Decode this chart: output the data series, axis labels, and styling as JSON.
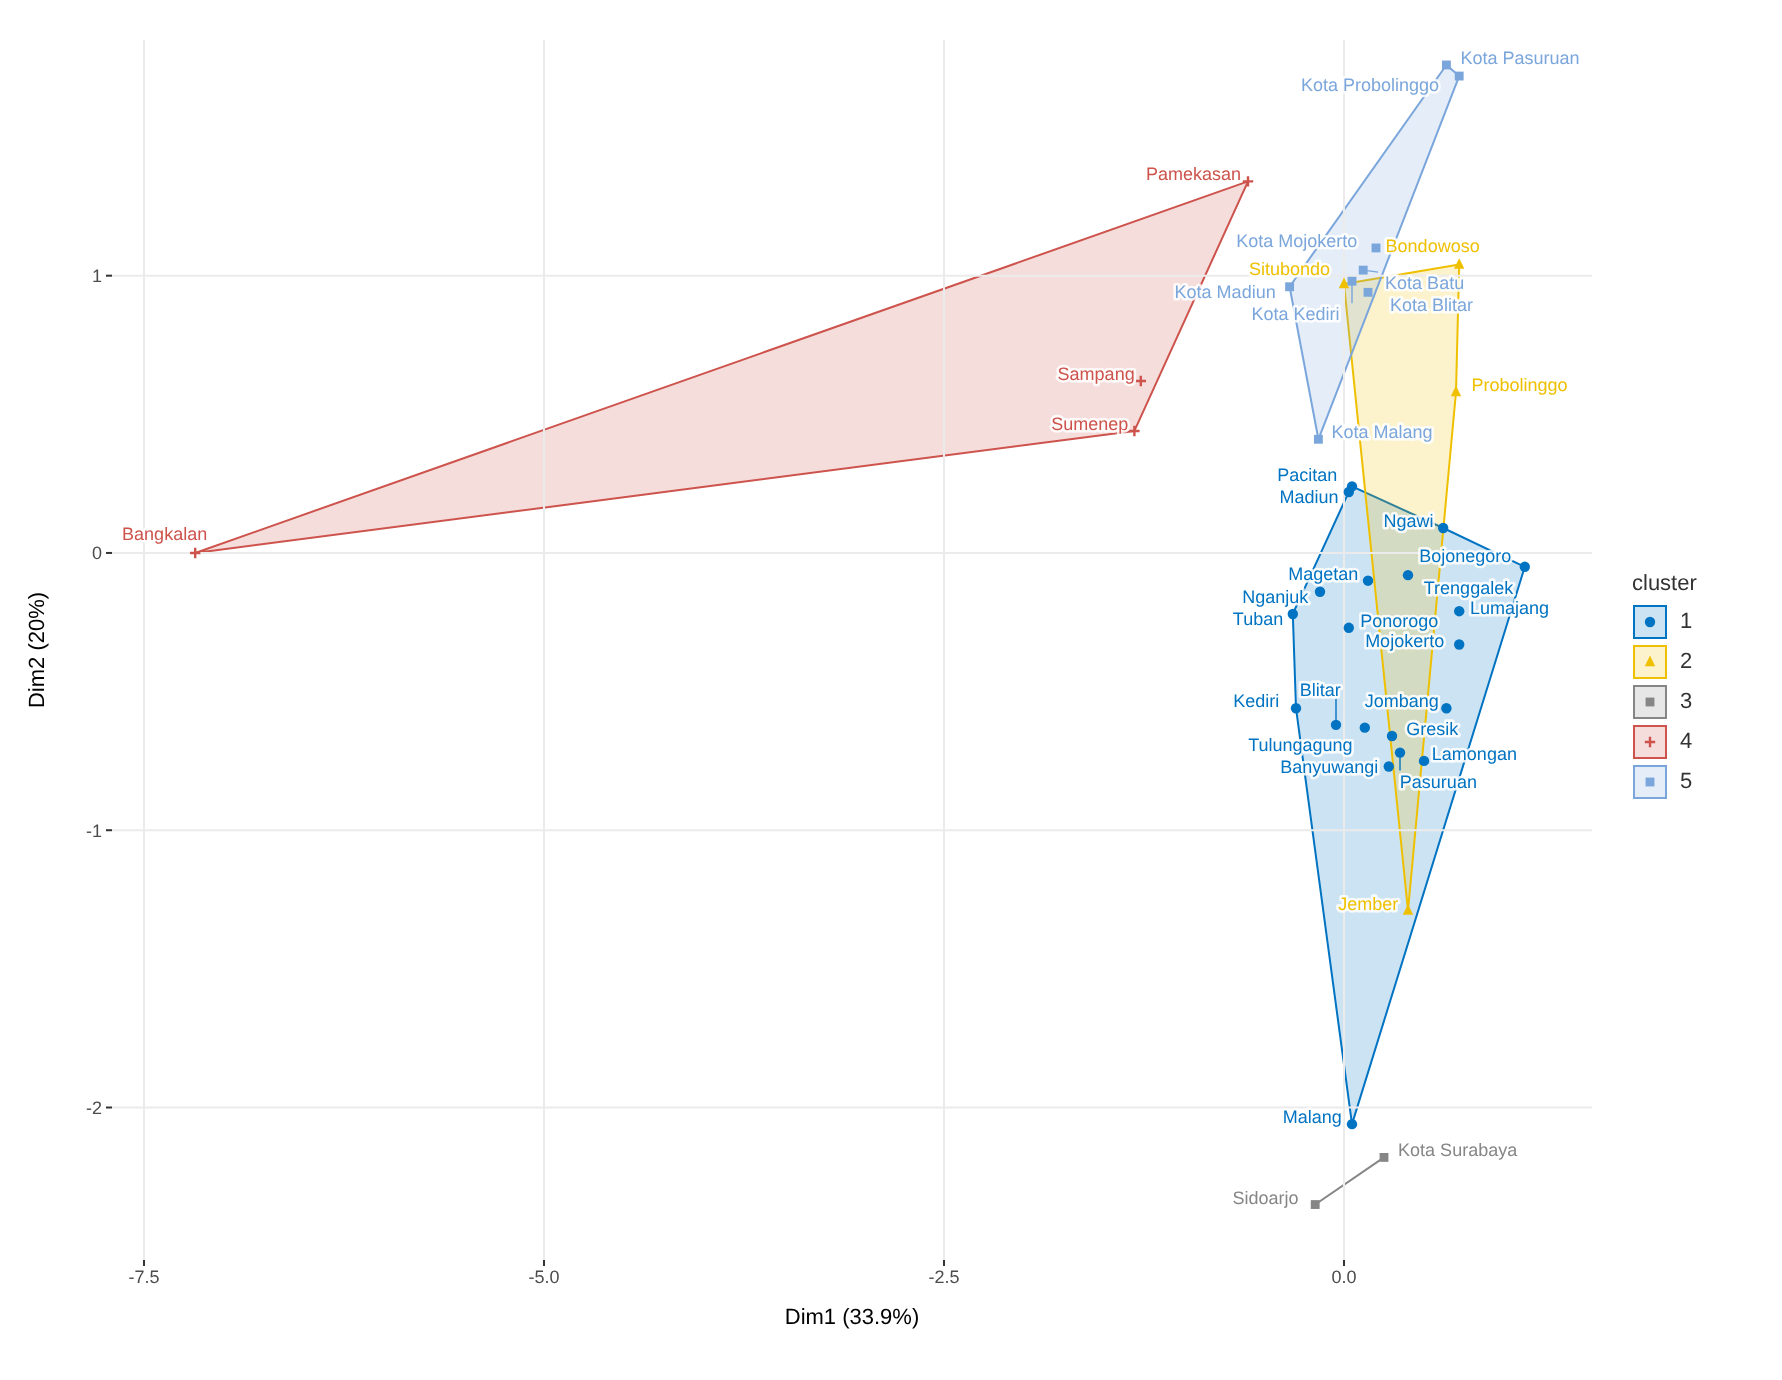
{
  "chart_data": {
    "type": "scatter",
    "xlabel": "Dim1 (33.9%)",
    "ylabel": "Dim2 (20%)",
    "legend_title": "cluster",
    "legend": "right",
    "grid": true,
    "xlim": [
      -7.7,
      1.55
    ],
    "ylim": [
      -2.55,
      1.85
    ],
    "xticks": [
      {
        "value": -7.5,
        "label": "-7.5"
      },
      {
        "value": -5,
        "label": "-5.0"
      },
      {
        "value": -2.5,
        "label": "-2.5"
      },
      {
        "value": 0,
        "label": "0.0"
      }
    ],
    "yticks": [
      -2,
      -1,
      0,
      1
    ],
    "series": [
      {
        "name": "1",
        "color": "#0073c2",
        "marker": "circle",
        "x": [
          0.05,
          0.03,
          0.62,
          1.13,
          0.15,
          -0.15,
          -0.32,
          0.03,
          0.4,
          0.72,
          0.72,
          0.64,
          -0.3,
          0.13,
          -0.05,
          0.3,
          0.35,
          0.28,
          0.5,
          0.05
        ],
        "values": [
          0.24,
          0.22,
          0.09,
          -0.05,
          -0.1,
          -0.14,
          -0.22,
          -0.27,
          -0.08,
          -0.21,
          -0.33,
          -0.56,
          -0.56,
          -0.63,
          -0.62,
          -0.66,
          -0.72,
          -0.77,
          -0.75,
          -2.06
        ]
      },
      {
        "name": "2",
        "color": "#efc000",
        "marker": "triangle",
        "x": [
          0.0,
          0.72,
          0.7,
          0.4
        ],
        "values": [
          0.97,
          1.04,
          0.58,
          -1.29
        ]
      },
      {
        "name": "3",
        "color": "#868686",
        "marker": "square",
        "x": [
          0.25,
          -0.18
        ],
        "values": [
          -2.18,
          -2.35
        ]
      },
      {
        "name": "4",
        "color": "#cd534c",
        "marker": "cross",
        "x": [
          -7.18,
          -0.6,
          -1.27,
          -1.31
        ],
        "values": [
          0.0,
          1.34,
          0.62,
          0.44
        ]
      },
      {
        "name": "5",
        "color": "#7aa6dc",
        "marker": "square",
        "x": [
          0.64,
          0.72,
          0.2,
          0.12,
          0.15,
          -0.34,
          0.05,
          -0.16
        ],
        "values": [
          1.76,
          1.72,
          1.1,
          1.02,
          0.94,
          0.96,
          0.98,
          0.41
        ]
      }
    ],
    "annotations": [
      {
        "text": "Pacitan",
        "x": 0.05,
        "y": 0.24
      },
      {
        "text": "Madiun",
        "x": 0.03,
        "y": 0.22
      },
      {
        "text": "Ngawi",
        "x": 0.62,
        "y": 0.09
      },
      {
        "text": "Bojonegoro",
        "x": 1.13,
        "y": -0.05
      },
      {
        "text": "Magetan",
        "x": 0.15,
        "y": -0.1
      },
      {
        "text": "Nganjuk",
        "x": -0.15,
        "y": -0.14
      },
      {
        "text": "Tuban",
        "x": -0.32,
        "y": -0.22
      },
      {
        "text": "Ponorogo",
        "x": 0.03,
        "y": -0.27
      },
      {
        "text": "Trenggalek",
        "x": 0.4,
        "y": -0.08
      },
      {
        "text": "Lumajang",
        "x": 0.72,
        "y": -0.21
      },
      {
        "text": "Mojokerto",
        "x": 0.72,
        "y": -0.33
      },
      {
        "text": "Jombang",
        "x": 0.64,
        "y": -0.56
      },
      {
        "text": "Kediri",
        "x": -0.3,
        "y": -0.56
      },
      {
        "text": "Tulungagung",
        "x": 0.13,
        "y": -0.63
      },
      {
        "text": "Blitar",
        "x": -0.05,
        "y": -0.62
      },
      {
        "text": "Gresik",
        "x": 0.3,
        "y": -0.66
      },
      {
        "text": "Pasuruan",
        "x": 0.35,
        "y": -0.72
      },
      {
        "text": "Banyuwangi",
        "x": 0.28,
        "y": -0.77
      },
      {
        "text": "Lamongan",
        "x": 0.5,
        "y": -0.75
      },
      {
        "text": "Malang",
        "x": 0.05,
        "y": -2.06
      },
      {
        "text": "Situbondo",
        "x": 0.0,
        "y": 0.97
      },
      {
        "text": "Bondowoso",
        "x": 0.72,
        "y": 1.04
      },
      {
        "text": "Probolinggo",
        "x": 0.7,
        "y": 0.58
      },
      {
        "text": "Jember",
        "x": 0.4,
        "y": -1.29
      },
      {
        "text": "Kota Surabaya",
        "x": 0.25,
        "y": -2.18
      },
      {
        "text": "Sidoarjo",
        "x": -0.18,
        "y": -2.35
      },
      {
        "text": "Bangkalan",
        "x": -7.18,
        "y": 0.0
      },
      {
        "text": "Pamekasan",
        "x": -0.6,
        "y": 1.34
      },
      {
        "text": "Sampang",
        "x": -1.27,
        "y": 0.62
      },
      {
        "text": "Sumenep",
        "x": -1.31,
        "y": 0.44
      },
      {
        "text": "Kota Pasuruan",
        "x": 0.64,
        "y": 1.76
      },
      {
        "text": "Kota Probolinggo",
        "x": 0.72,
        "y": 1.72
      },
      {
        "text": "Kota Mojokerto",
        "x": 0.2,
        "y": 1.1
      },
      {
        "text": "Kota Batu",
        "x": 0.12,
        "y": 1.02
      },
      {
        "text": "Kota Blitar",
        "x": 0.15,
        "y": 0.94
      },
      {
        "text": "Kota Madiun",
        "x": -0.34,
        "y": 0.96
      },
      {
        "text": "Kota Kediri",
        "x": 0.05,
        "y": 0.98
      },
      {
        "text": "Kota Malang",
        "x": -0.16,
        "y": 0.41
      }
    ]
  }
}
